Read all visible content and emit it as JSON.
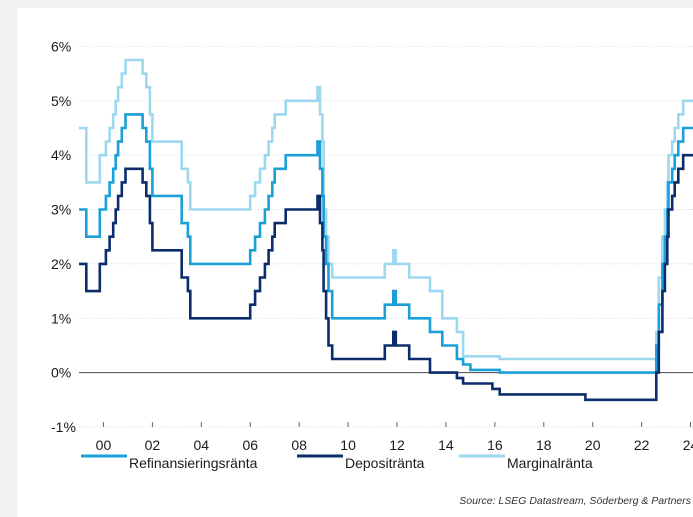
{
  "chart_data": {
    "type": "line",
    "title": "",
    "xlabel": "",
    "ylabel": "",
    "x_ticks": [
      "00",
      "02",
      "04",
      "06",
      "08",
      "10",
      "12",
      "14",
      "16",
      "18",
      "20",
      "22",
      "24"
    ],
    "x_tick_years": [
      2000,
      2002,
      2004,
      2006,
      2008,
      2010,
      2012,
      2014,
      2016,
      2018,
      2020,
      2022,
      2024
    ],
    "y_ticks": [
      "-1%",
      "0%",
      "1%",
      "2%",
      "3%",
      "4%",
      "5%",
      "6%"
    ],
    "y_tick_values": [
      -1,
      0,
      1,
      2,
      3,
      4,
      5,
      6
    ],
    "xlim": [
      1999.0,
      2024.1
    ],
    "ylim": [
      -1,
      6.1
    ],
    "grid": "horizontal dotted",
    "zero_line": true,
    "legend_position": "bottom",
    "source": "Source: LSEG Datastream, Söderberg & Partners",
    "series": [
      {
        "name": "Refinansieringsränta",
        "color": "#1a9fd6",
        "x": [
          1999.0,
          1999.25,
          1999.3,
          1999.8,
          1999.85,
          2000.1,
          2000.25,
          2000.4,
          2000.5,
          2000.6,
          2000.75,
          2000.9,
          2001.4,
          2001.6,
          2001.75,
          2001.9,
          2002.0,
          2003.1,
          2003.2,
          2003.45,
          2003.55,
          2005.9,
          2006.0,
          2006.2,
          2006.4,
          2006.6,
          2006.75,
          2006.9,
          2007.0,
          2007.45,
          2008.5,
          2008.75,
          2008.85,
          2008.95,
          2009.0,
          2009.1,
          2009.2,
          2009.35,
          2011.3,
          2011.5,
          2011.85,
          2011.95,
          2012.5,
          2013.35,
          2013.85,
          2014.45,
          2014.7,
          2015.0,
          2016.2,
          2022.5,
          2022.6,
          2022.7,
          2022.85,
          2022.95,
          2023.05,
          2023.1,
          2023.25,
          2023.35,
          2023.5,
          2023.7,
          2024.1
        ],
        "y": [
          3.0,
          3.0,
          2.5,
          2.5,
          3.0,
          3.25,
          3.5,
          3.75,
          4.0,
          4.25,
          4.5,
          4.75,
          4.75,
          4.5,
          4.25,
          3.75,
          3.25,
          3.25,
          2.75,
          2.5,
          2.0,
          2.0,
          2.25,
          2.5,
          2.75,
          3.0,
          3.25,
          3.5,
          3.75,
          4.0,
          4.0,
          4.25,
          3.75,
          3.25,
          2.5,
          2.0,
          1.5,
          1.0,
          1.0,
          1.25,
          1.5,
          1.25,
          1.0,
          0.75,
          0.5,
          0.25,
          0.15,
          0.05,
          0.0,
          0.0,
          0.5,
          1.25,
          2.0,
          2.5,
          3.0,
          3.5,
          3.75,
          4.0,
          4.25,
          4.5,
          4.5
        ]
      },
      {
        "name": "Depositränta",
        "color": "#0b2d6b",
        "x": [
          1999.0,
          1999.25,
          1999.3,
          1999.8,
          1999.85,
          2000.1,
          2000.25,
          2000.4,
          2000.5,
          2000.6,
          2000.75,
          2000.9,
          2001.4,
          2001.6,
          2001.75,
          2001.9,
          2002.0,
          2003.1,
          2003.2,
          2003.45,
          2003.55,
          2005.9,
          2006.0,
          2006.2,
          2006.4,
          2006.6,
          2006.75,
          2006.9,
          2007.0,
          2007.45,
          2008.5,
          2008.75,
          2008.85,
          2008.95,
          2009.0,
          2009.1,
          2009.2,
          2009.35,
          2011.3,
          2011.5,
          2011.85,
          2011.95,
          2012.5,
          2013.35,
          2014.45,
          2014.7,
          2015.9,
          2016.2,
          2019.7,
          2022.5,
          2022.6,
          2022.7,
          2022.85,
          2022.95,
          2023.05,
          2023.1,
          2023.25,
          2023.35,
          2023.5,
          2023.7,
          2024.1
        ],
        "y": [
          2.0,
          2.0,
          1.5,
          1.5,
          2.0,
          2.25,
          2.5,
          2.75,
          3.0,
          3.25,
          3.5,
          3.75,
          3.75,
          3.5,
          3.25,
          2.75,
          2.25,
          2.25,
          1.75,
          1.5,
          1.0,
          1.0,
          1.25,
          1.5,
          1.75,
          2.0,
          2.25,
          2.5,
          2.75,
          3.0,
          3.0,
          3.25,
          2.75,
          2.25,
          1.5,
          1.0,
          0.5,
          0.25,
          0.25,
          0.5,
          0.75,
          0.5,
          0.25,
          0.0,
          -0.1,
          -0.2,
          -0.3,
          -0.4,
          -0.5,
          -0.5,
          0.0,
          0.75,
          1.5,
          2.0,
          2.5,
          3.0,
          3.25,
          3.5,
          3.75,
          4.0,
          4.0
        ]
      },
      {
        "name": "Marginalränta",
        "color": "#9dd8ef",
        "x": [
          1999.0,
          1999.25,
          1999.3,
          1999.8,
          1999.85,
          2000.1,
          2000.25,
          2000.4,
          2000.5,
          2000.6,
          2000.75,
          2000.9,
          2001.4,
          2001.6,
          2001.75,
          2001.9,
          2002.0,
          2003.1,
          2003.2,
          2003.45,
          2003.55,
          2005.9,
          2006.0,
          2006.2,
          2006.4,
          2006.6,
          2006.75,
          2006.9,
          2007.0,
          2007.45,
          2008.5,
          2008.75,
          2008.85,
          2008.95,
          2009.0,
          2009.1,
          2009.2,
          2009.35,
          2011.3,
          2011.5,
          2011.85,
          2011.95,
          2012.5,
          2013.35,
          2013.85,
          2014.45,
          2014.7,
          2016.2,
          2022.5,
          2022.6,
          2022.7,
          2022.85,
          2022.95,
          2023.05,
          2023.1,
          2023.25,
          2023.35,
          2023.5,
          2023.7,
          2024.1
        ],
        "y": [
          4.5,
          4.5,
          3.5,
          3.5,
          4.0,
          4.25,
          4.5,
          4.75,
          5.0,
          5.25,
          5.5,
          5.75,
          5.75,
          5.5,
          5.25,
          4.75,
          4.25,
          4.25,
          3.75,
          3.5,
          3.0,
          3.0,
          3.25,
          3.5,
          3.75,
          4.0,
          4.25,
          4.5,
          4.75,
          5.0,
          5.0,
          5.25,
          4.75,
          4.25,
          3.0,
          2.5,
          2.0,
          1.75,
          1.75,
          2.0,
          2.25,
          2.0,
          1.75,
          1.5,
          1.0,
          0.75,
          0.3,
          0.25,
          0.25,
          0.75,
          1.75,
          2.5,
          3.0,
          3.5,
          4.0,
          4.25,
          4.5,
          4.75,
          5.0,
          5.0
        ]
      }
    ]
  }
}
